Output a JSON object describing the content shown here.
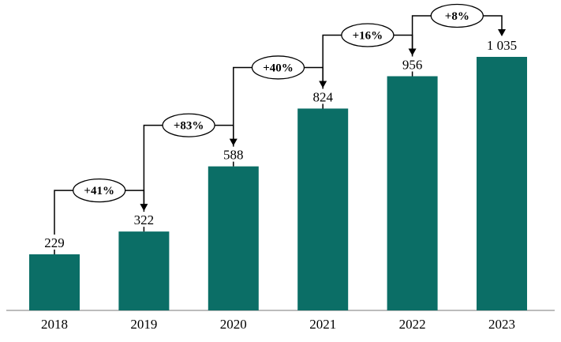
{
  "chart_data": {
    "type": "bar",
    "title": "",
    "xlabel": "",
    "ylabel": "",
    "categories": [
      "2018",
      "2019",
      "2020",
      "2021",
      "2022",
      "2023"
    ],
    "values": [
      229,
      322,
      588,
      824,
      956,
      1035
    ],
    "value_labels": [
      "229",
      "322",
      "588",
      "824",
      "956",
      "1 035"
    ],
    "growth_labels": [
      "+41%",
      "+83%",
      "+40%",
      "+16%",
      "+8%"
    ],
    "ylim": [
      0,
      1100
    ],
    "grid": false,
    "legend": "none",
    "bar_color": "#0b6e66",
    "axis_color": "#a6a6a6",
    "connector_color": "#000000",
    "ellipse_fill": "#ffffff",
    "ellipse_stroke": "#000000"
  }
}
